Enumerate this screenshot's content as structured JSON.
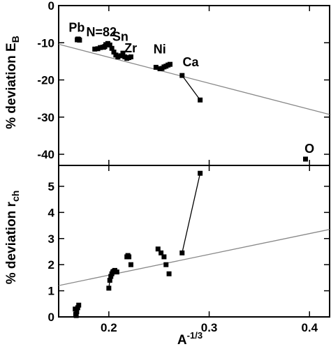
{
  "chart_data": [
    {
      "type": "scatter",
      "ylabel": "% deviation E",
      "ylabel_subscript": "B",
      "xlim": [
        0.15,
        0.42
      ],
      "ylim": [
        -43,
        0
      ],
      "yticks": [
        0,
        -10,
        -20,
        -30,
        -40
      ],
      "grid": false,
      "annotations": [
        {
          "text": "Pb",
          "x": 0.16,
          "y": -7.0
        },
        {
          "text": "N=82",
          "x": 0.1775,
          "y": -8.3
        },
        {
          "text": "Sn",
          "x": 0.2035,
          "y": -9.5
        },
        {
          "text": "Zr",
          "x": 0.2155,
          "y": -12.6
        },
        {
          "text": "Ni",
          "x": 0.2445,
          "y": -12.9
        },
        {
          "text": "Ca",
          "x": 0.2735,
          "y": -16.3
        },
        {
          "text": "O",
          "x": 0.395,
          "y": -39.6
        }
      ],
      "fit_line": {
        "x": [
          0.15,
          0.42
        ],
        "y": [
          -10.4,
          -29.3
        ]
      },
      "series": [
        {
          "group": "Pb",
          "x": [
            0.1685,
            0.1692,
            0.17,
            0.1708
          ],
          "y": [
            -9.2,
            -9.0,
            -9.1,
            -9.3
          ],
          "connected": false
        },
        {
          "group": "N82",
          "x": [
            0.186,
            0.189,
            0.1915,
            0.194,
            0.196
          ],
          "y": [
            -11.7,
            -11.6,
            -11.3,
            -11.2,
            -11.0
          ],
          "connected": false
        },
        {
          "group": "Sn",
          "x": [
            0.195,
            0.197,
            0.199,
            0.201,
            0.203,
            0.205,
            0.207,
            0.209
          ],
          "y": [
            -11.2,
            -10.5,
            -10.2,
            -10.6,
            -11.5,
            -12.5,
            -13.3,
            -13.8
          ],
          "connected": true
        },
        {
          "group": "Zr",
          "x": [
            0.212,
            0.214,
            0.216,
            0.218,
            0.22,
            0.222
          ],
          "y": [
            -13.5,
            -12.8,
            -13.8,
            -14.2,
            -14.0,
            -13.8
          ],
          "connected": false
        },
        {
          "group": "Ni",
          "x": [
            0.247,
            0.251,
            0.253,
            0.255,
            0.257,
            0.259,
            0.261
          ],
          "y": [
            -16.6,
            -17.0,
            -16.9,
            -16.5,
            -16.3,
            -16.0,
            -15.8
          ],
          "connected": false
        },
        {
          "group": "Ca",
          "x": [
            0.273,
            0.291
          ],
          "y": [
            -18.8,
            -25.4
          ],
          "connected": true
        },
        {
          "group": "O",
          "x": [
            0.396
          ],
          "y": [
            -41.3
          ],
          "connected": false
        }
      ]
    },
    {
      "type": "scatter",
      "xlabel": "A",
      "xlabel_superscript": "-1/3",
      "ylabel": "% deviation r",
      "ylabel_subscript": "ch",
      "xlim": [
        0.15,
        0.42
      ],
      "ylim": [
        0,
        5.8
      ],
      "yticks": [
        0,
        1,
        2,
        3,
        4,
        5
      ],
      "xticks": [
        0.2,
        0.3,
        0.4
      ],
      "grid": false,
      "fit_line": {
        "x": [
          0.15,
          0.42
        ],
        "y": [
          1.2,
          3.35
        ]
      },
      "series": [
        {
          "group": "Pb",
          "x": [
            0.1665,
            0.167,
            0.1675,
            0.168,
            0.169,
            0.17
          ],
          "y": [
            0.3,
            0.1,
            0.05,
            0.2,
            0.35,
            0.45
          ],
          "connected": false
        },
        {
          "group": "Sn",
          "x": [
            0.2,
            0.201,
            0.202,
            0.203,
            0.204,
            0.205,
            0.206,
            0.208
          ],
          "y": [
            1.1,
            1.4,
            1.55,
            1.65,
            1.72,
            1.75,
            1.78,
            1.72
          ],
          "connected": true
        },
        {
          "group": "Zr",
          "x": [
            0.218,
            0.219,
            0.22,
            0.222
          ],
          "y": [
            2.3,
            2.35,
            2.3,
            2.0
          ],
          "connected": false
        },
        {
          "group": "Ni",
          "x": [
            0.249,
            0.252,
            0.255,
            0.257,
            0.26
          ],
          "y": [
            2.6,
            2.45,
            2.3,
            2.0,
            1.65
          ],
          "connected": false
        },
        {
          "group": "Ca",
          "x": [
            0.273,
            0.291
          ],
          "y": [
            2.45,
            5.5
          ],
          "connected": true
        }
      ]
    }
  ]
}
